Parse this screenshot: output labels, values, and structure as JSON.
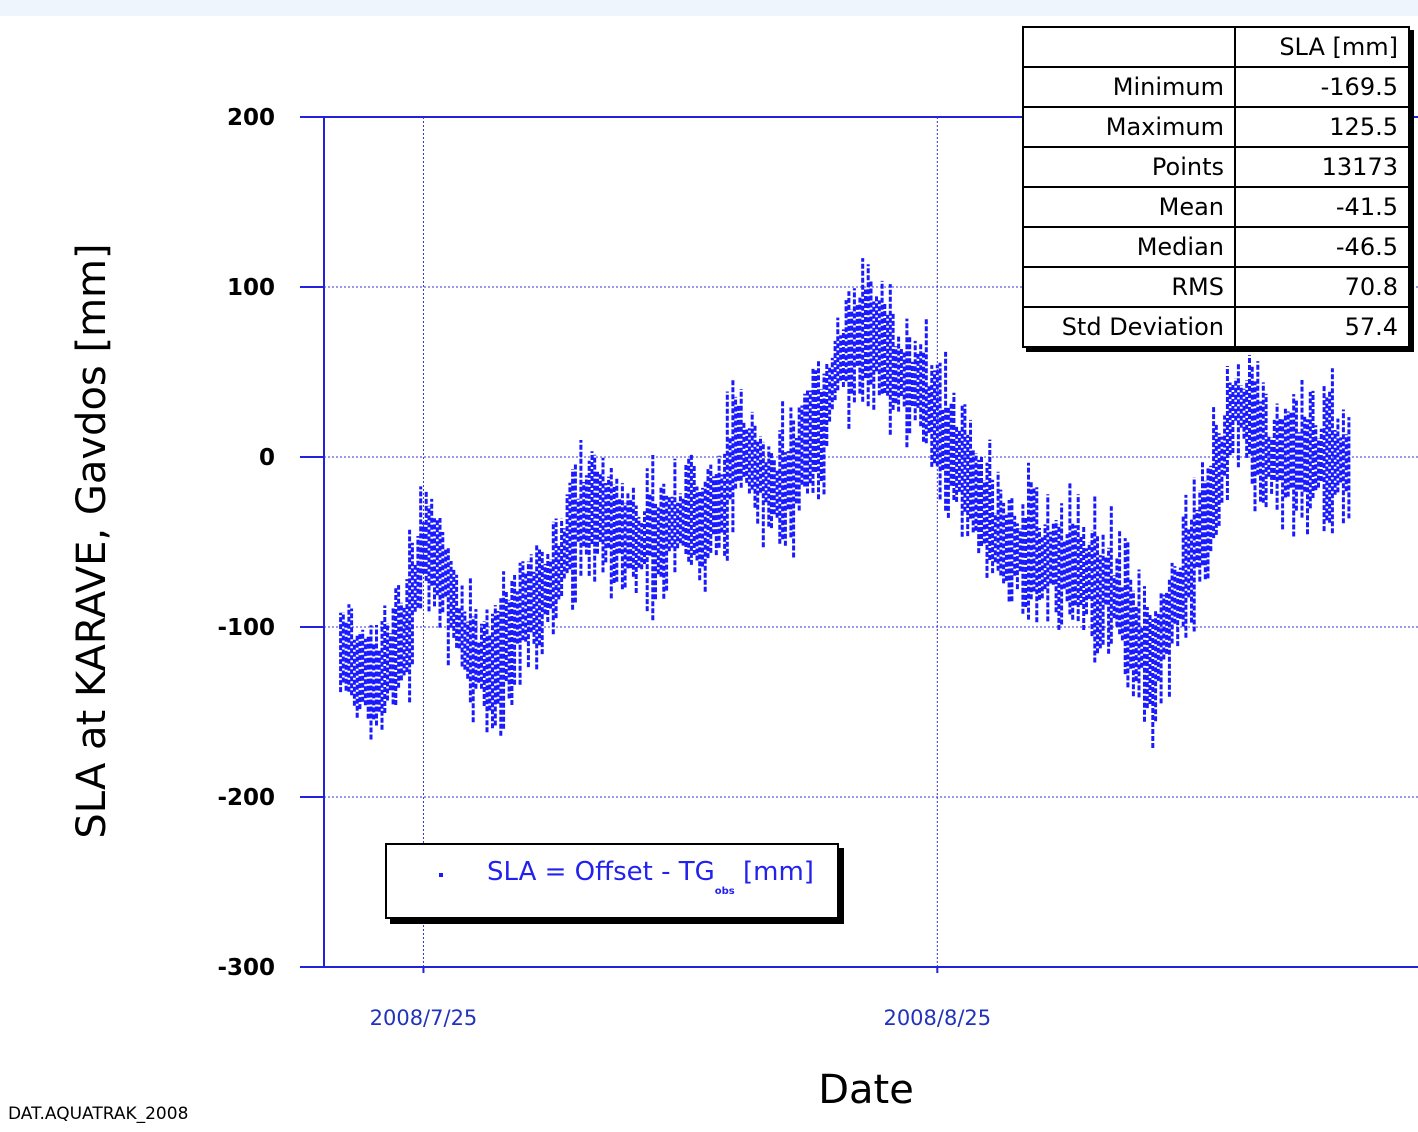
{
  "chart_data": {
    "type": "scatter",
    "title": "",
    "xlabel": "Date",
    "ylabel": "SLA at KARAVE, Gavdos [mm]",
    "ylim": [
      -300,
      200
    ],
    "xlim": [
      "2008-07-19",
      "2008-09-23"
    ],
    "y_ticks": [
      "200",
      "100",
      "0",
      "-100",
      "-200",
      "-300"
    ],
    "x_ticks": [
      "2008/7/25",
      "2008/8/25"
    ],
    "grid": true,
    "legend": {
      "position": "bottom-left",
      "label_main": "SLA = Offset - TG",
      "label_sub": "obs",
      "label_unit": "[mm]"
    },
    "series": [
      {
        "name": "SLA = Offset - TG obs [mm]",
        "color": "#1a1aff",
        "x": [
          "2008-07-20",
          "2008-07-21",
          "2008-07-22",
          "2008-07-23",
          "2008-07-24",
          "2008-07-25",
          "2008-07-26",
          "2008-07-27",
          "2008-07-28",
          "2008-07-29",
          "2008-07-30",
          "2008-07-31",
          "2008-08-01",
          "2008-08-02",
          "2008-08-03",
          "2008-08-04",
          "2008-08-05",
          "2008-08-06",
          "2008-08-07",
          "2008-08-08",
          "2008-08-09",
          "2008-08-10",
          "2008-08-11",
          "2008-08-12",
          "2008-08-13",
          "2008-08-14",
          "2008-08-15",
          "2008-08-16",
          "2008-08-17",
          "2008-08-18",
          "2008-08-19",
          "2008-08-20",
          "2008-08-21",
          "2008-08-22",
          "2008-08-23",
          "2008-08-24",
          "2008-08-25",
          "2008-08-26",
          "2008-08-27",
          "2008-08-28",
          "2008-08-29",
          "2008-08-30",
          "2008-08-31",
          "2008-09-01",
          "2008-09-02",
          "2008-09-03",
          "2008-09-04",
          "2008-09-05",
          "2008-09-06",
          "2008-09-07",
          "2008-09-08",
          "2008-09-09",
          "2008-09-10",
          "2008-09-11",
          "2008-09-12",
          "2008-09-13",
          "2008-09-14",
          "2008-09-15",
          "2008-09-16",
          "2008-09-17",
          "2008-09-18"
        ],
        "y": [
          -110,
          -125,
          -130,
          -120,
          -100,
          -55,
          -60,
          -95,
          -120,
          -125,
          -115,
          -85,
          -85,
          -70,
          -40,
          -30,
          -35,
          -45,
          -50,
          -45,
          -40,
          -35,
          -40,
          -25,
          10,
          -5,
          -20,
          -15,
          5,
          20,
          55,
          70,
          75,
          60,
          45,
          40,
          20,
          0,
          -15,
          -35,
          -50,
          -55,
          -60,
          -60,
          -60,
          -70,
          -75,
          -85,
          -110,
          -120,
          -95,
          -70,
          -40,
          -10,
          35,
          20,
          0,
          0,
          0,
          0,
          0
        ]
      }
    ],
    "stats_table": {
      "header": [
        "",
        "SLA [mm]"
      ],
      "rows": [
        [
          "Minimum",
          "-169.5"
        ],
        [
          "Maximum",
          "125.5"
        ],
        [
          "Points",
          "13173"
        ],
        [
          "Mean",
          "-41.5"
        ],
        [
          "Median",
          "-46.5"
        ],
        [
          "RMS",
          "70.8"
        ],
        [
          "Std Deviation",
          "57.4"
        ]
      ]
    }
  },
  "footer": "DAT.AQUATRAK_2008",
  "colors": {
    "axis": "#2222dd",
    "grid": "#3333cc",
    "data": "#1a1aff",
    "tick_label_x": "#2233bb"
  }
}
